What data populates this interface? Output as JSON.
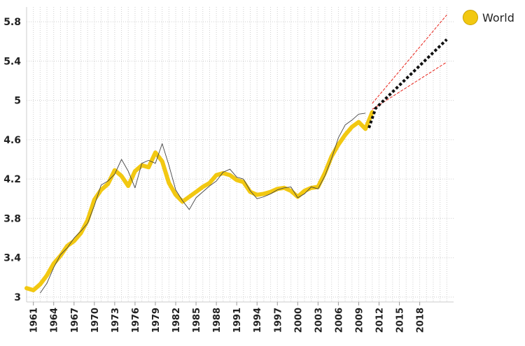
{
  "colors": {
    "series": "#f2c811",
    "smoothed": "#444444",
    "forecast": "#111111",
    "interval": "#e8231a",
    "grid": "#cfcfcf"
  },
  "legend": {
    "label": "World",
    "icon": "circle-swatch"
  },
  "chart_data": {
    "type": "line",
    "title": "",
    "xlabel": "",
    "ylabel": "",
    "xlim": [
      1960,
      2023
    ],
    "ylim": [
      2.95,
      5.95
    ],
    "grid": true,
    "legend_position": "top-right",
    "yticks": [
      3,
      3.4,
      3.8,
      4.2,
      4.6,
      5,
      5.4,
      5.8
    ],
    "ytick_labels": [
      "3",
      "3.4",
      "3.8",
      "4.2",
      "4.6",
      "5",
      "5.4",
      "5.8"
    ],
    "xticks": [
      1961,
      1964,
      1967,
      1970,
      1973,
      1976,
      1979,
      1982,
      1985,
      1988,
      1991,
      1994,
      1997,
      2000,
      2003,
      2006,
      2009,
      2012,
      2015,
      2018
    ],
    "xtick_labels": [
      "1961",
      "1964",
      "1967",
      "1970",
      "1973",
      "1976",
      "1979",
      "1982",
      "1985",
      "1988",
      "1991",
      "1994",
      "1997",
      "2000",
      "2003",
      "2006",
      "2009",
      "2012",
      "2015",
      "2018"
    ],
    "series": [
      {
        "role": "actual",
        "x": [
          1960,
          1961,
          1962,
          1963,
          1964,
          1965,
          1966,
          1967,
          1968,
          1969,
          1970,
          1971,
          1972,
          1973,
          1974,
          1975,
          1976,
          1977,
          1978,
          1979,
          1980,
          1981,
          1982,
          1983,
          1984,
          1985,
          1986,
          1987,
          1988,
          1989,
          1990,
          1991,
          1992,
          1993,
          1994,
          1995,
          1996,
          1997,
          1998,
          1999,
          2000,
          2001,
          2002,
          2003,
          2004,
          2005,
          2006,
          2007,
          2008,
          2009,
          2010,
          2011
        ],
        "y": [
          3.09,
          3.07,
          3.13,
          3.22,
          3.34,
          3.42,
          3.52,
          3.57,
          3.65,
          3.78,
          3.99,
          4.09,
          4.15,
          4.29,
          4.23,
          4.13,
          4.28,
          4.34,
          4.32,
          4.47,
          4.38,
          4.16,
          4.04,
          3.97,
          4.02,
          4.07,
          4.12,
          4.16,
          4.24,
          4.26,
          4.24,
          4.19,
          4.17,
          4.07,
          4.04,
          4.05,
          4.07,
          4.1,
          4.11,
          4.08,
          4.02,
          4.08,
          4.11,
          4.12,
          4.26,
          4.43,
          4.55,
          4.65,
          4.73,
          4.78,
          4.71,
          4.88
        ]
      },
      {
        "role": "smoothed",
        "x": [
          1962,
          1963,
          1964,
          1965,
          1966,
          1967,
          1968,
          1969,
          1970,
          1971,
          1972,
          1973,
          1974,
          1975,
          1976,
          1977,
          1978,
          1979,
          1980,
          1981,
          1982,
          1983,
          1984,
          1985,
          1986,
          1987,
          1988,
          1989,
          1990,
          1991,
          1992,
          1993,
          1994,
          1995,
          1996,
          1997,
          1998,
          1999,
          2000,
          2001,
          2002,
          2003,
          2004,
          2005,
          2006,
          2007,
          2008,
          2009,
          2010
        ],
        "y": [
          3.04,
          3.14,
          3.3,
          3.43,
          3.5,
          3.6,
          3.67,
          3.75,
          3.93,
          4.14,
          4.18,
          4.25,
          4.4,
          4.28,
          4.11,
          4.36,
          4.39,
          4.36,
          4.56,
          4.34,
          4.09,
          3.98,
          3.89,
          4.01,
          4.07,
          4.13,
          4.18,
          4.27,
          4.3,
          4.22,
          4.2,
          4.08,
          4.0,
          4.02,
          4.05,
          4.09,
          4.11,
          4.12,
          4.01,
          4.05,
          4.12,
          4.1,
          4.23,
          4.41,
          4.62,
          4.75,
          4.8,
          4.86,
          4.87
        ]
      },
      {
        "role": "forecast",
        "x": [
          2010.5,
          2011.5,
          2022
        ],
        "y": [
          4.72,
          4.92,
          5.62
        ]
      },
      {
        "role": "upper-bound",
        "x": [
          2011,
          2022
        ],
        "y": [
          4.97,
          5.87
        ]
      },
      {
        "role": "lower-bound",
        "x": [
          2011,
          2022
        ],
        "y": [
          4.91,
          5.39
        ]
      }
    ]
  }
}
